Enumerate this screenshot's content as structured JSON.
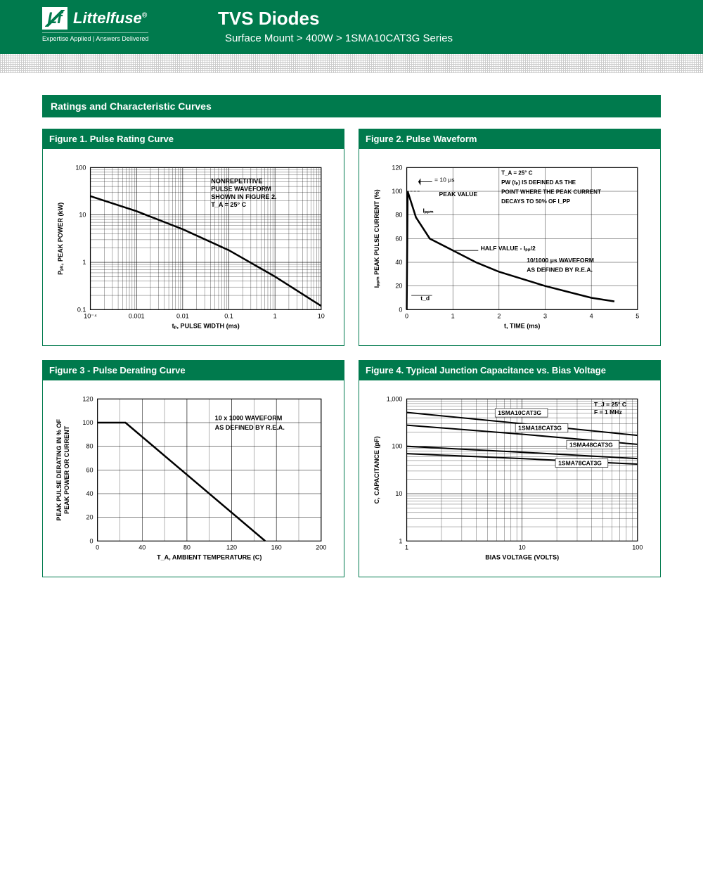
{
  "header": {
    "brand": "Littelfuse",
    "brand_sup": "®",
    "tagline": "Expertise Applied | Answers Delivered",
    "title": "TVS Diodes",
    "breadcrumb": "Surface Mount  >  400W  >  1SMA10CAT3G Series"
  },
  "section": "Ratings and Characteristic Curves",
  "figures": {
    "f1": {
      "title": "Figure 1. Pulse Rating Curve",
      "xlabel": "tₚ, PULSE WIDTH (ms)",
      "ylabel": "Pₚₖ, PEAK POWER (kW)",
      "xticks": [
        "10⁻⁴",
        "0.001",
        "0.01",
        "0.1",
        "1",
        "10"
      ],
      "yticks": [
        "0.1",
        "1",
        "10",
        "100"
      ],
      "note": "NONREPETITIVE\nPULSE WAVEFORM\nSHOWN IN FIGURE 2.\nT_A = 25° C",
      "line": [
        [
          0.0001,
          25
        ],
        [
          0.001,
          12
        ],
        [
          0.01,
          5
        ],
        [
          0.1,
          1.8
        ],
        [
          1,
          0.5
        ],
        [
          10,
          0.12
        ]
      ]
    },
    "f2": {
      "title": "Figure 2. Pulse Waveform",
      "xlabel": "t, TIME (ms)",
      "ylabel": "Iₚₚₘ PEAK PULSE CURRENT (%)",
      "xticks": [
        "0",
        "1",
        "2",
        "3",
        "4",
        "5"
      ],
      "yticks": [
        "0",
        "20",
        "40",
        "60",
        "80",
        "100",
        "120"
      ],
      "note1": "T_A = 25° C\nPW (tₚ) IS DEFINED AS THE\nPOINT WHERE THE PEAK CURRENT\nDECAYS TO 50% OF I_PP",
      "note2": "10/1000 μs WAVEFORM\nAS DEFINED BY R.E.A.",
      "label_peak": "PEAK VALUE",
      "label_ippm": "Iₚₚₘ",
      "label_half": "HALF VALUE - Iₚₚ/2",
      "label_10us": "= 10 μs",
      "label_td": "t_d",
      "line": [
        [
          0,
          0
        ],
        [
          0.02,
          100
        ],
        [
          0.2,
          78
        ],
        [
          0.5,
          60
        ],
        [
          1,
          50
        ],
        [
          1.5,
          40
        ],
        [
          2,
          32
        ],
        [
          2.5,
          26
        ],
        [
          3,
          20
        ],
        [
          3.5,
          15
        ],
        [
          4,
          10
        ],
        [
          4.5,
          7
        ]
      ]
    },
    "f3": {
      "title": "Figure 3 - Pulse Derating Curve",
      "xlabel": "T_A, AMBIENT TEMPERATURE (C)",
      "ylabel": "PEAK PULSE DERATING IN % OF\nPEAK POWER OR CURRENT",
      "xticks": [
        "0",
        "40",
        "80",
        "120",
        "160",
        "200"
      ],
      "yticks": [
        "0",
        "20",
        "40",
        "60",
        "80",
        "100",
        "120"
      ],
      "note": "10 x 1000 WAVEFORM\nAS DEFINED BY R.E.A.",
      "line": [
        [
          0,
          100
        ],
        [
          25,
          100
        ],
        [
          150,
          0
        ]
      ]
    },
    "f4": {
      "title": "Figure 4. Typical Junction Capacitance vs. Bias Voltage",
      "xlabel": "BIAS VOLTAGE (VOLTS)",
      "ylabel": "C, CAPACITANCE (pF)",
      "xticks": [
        "1",
        "10",
        "100"
      ],
      "yticks": [
        "1",
        "10",
        "100",
        "1,000"
      ],
      "note": "T_J = 25° C\nF = 1 MHz",
      "series": [
        {
          "name": "1SMA10CAT3G",
          "pts": [
            [
              1,
              520
            ],
            [
              10,
              300
            ],
            [
              100,
              170
            ]
          ]
        },
        {
          "name": "1SMA18CAT3G",
          "pts": [
            [
              1,
              280
            ],
            [
              10,
              180
            ],
            [
              100,
              110
            ]
          ]
        },
        {
          "name": "1SMA48CAT3G",
          "pts": [
            [
              1,
              100
            ],
            [
              10,
              75
            ],
            [
              100,
              55
            ]
          ]
        },
        {
          "name": "1SMA78CAT3G",
          "pts": [
            [
              1,
              70
            ],
            [
              10,
              55
            ],
            [
              100,
              42
            ]
          ]
        }
      ]
    }
  },
  "colors": {
    "brand": "#007a4d",
    "grid": "#000",
    "line": "#000"
  }
}
